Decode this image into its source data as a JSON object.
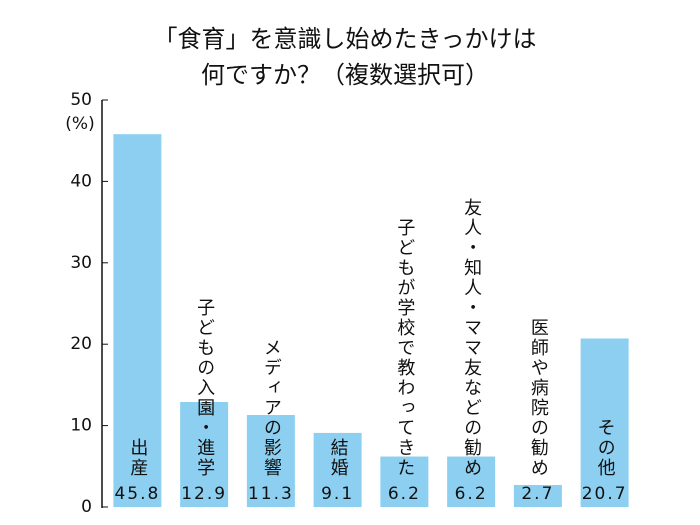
{
  "chart_data": {
    "type": "bar",
    "title": [
      "「食育」を意識し始めたきっかけは",
      "何ですか？（複数選択可）"
    ],
    "y_unit": "(%)",
    "categories": [
      "出産",
      "子どもの入園・進学",
      "メディアの影響",
      "結婚",
      "子どもが学校で教わってきた",
      "友人・知人・ママ友などの勧め",
      "医師や病院の勧め",
      "その他"
    ],
    "values": [
      45.8,
      12.9,
      11.3,
      9.1,
      6.2,
      6.2,
      2.7,
      20.7
    ],
    "color": "#8ccff0",
    "ylim": [
      0,
      50
    ],
    "yticks": [
      0,
      10,
      20,
      30,
      40,
      50
    ],
    "grid": false
  }
}
